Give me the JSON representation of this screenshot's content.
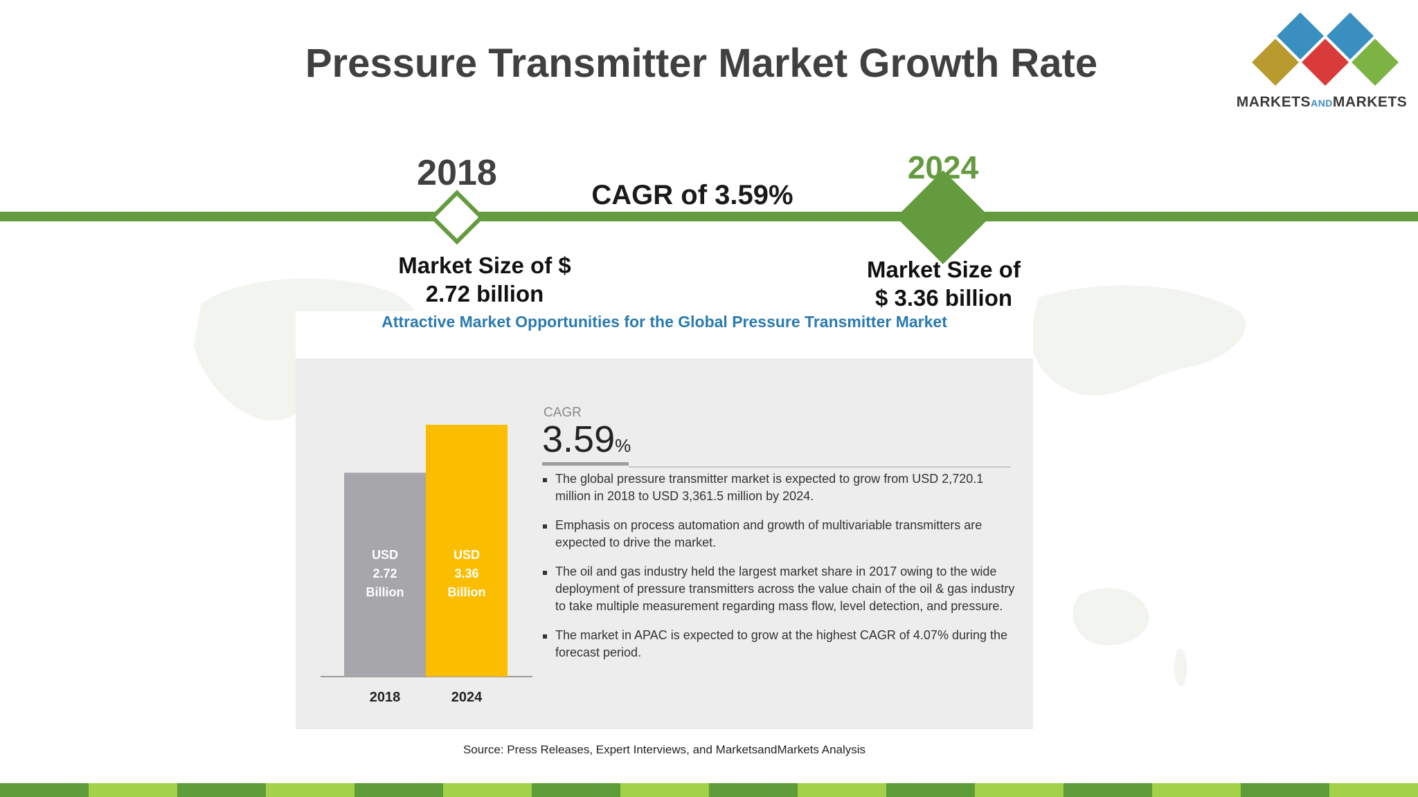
{
  "title": "Pressure Transmitter Market Growth Rate",
  "logo": {
    "text_main_1": "MARKETS",
    "text_and": "AND",
    "text_main_2": "MARKETS",
    "colors": [
      "#3a8fc1",
      "#3a8fc1",
      "#b89a2e",
      "#d93a3a",
      "#7cb342"
    ]
  },
  "timeline": {
    "start_year": "2018",
    "end_year": "2024",
    "cagr_label": "CAGR of 3.59%",
    "start_size": "Market Size of $ 2.72 billion",
    "start_size_line1": "Market Size of $",
    "start_size_line2": "2.72 billion",
    "end_size_line1": "Market Size of",
    "end_size_line2": "$ 3.36 billion",
    "accent_color": "#649b3e"
  },
  "panel": {
    "title": "Attractive Market Opportunities for the Global Pressure Transmitter Market",
    "cagr_label": "CAGR",
    "cagr_value": "3.59",
    "cagr_unit": "%",
    "bullets": [
      "The global pressure transmitter market is expected to grow from USD 2,720.1 million in 2018 to USD 3,361.5 million by 2024.",
      "Emphasis on process automation and growth of multivariable transmitters are expected to drive the market.",
      "The oil and gas industry held the largest market share in 2017 owing to the wide deployment of pressure transmitters across the value chain of the oil & gas industry to take multiple measurement regarding mass flow, level detection, and pressure.",
      "The market in APAC is expected to grow at the highest CAGR of 4.07% during the forecast period."
    ]
  },
  "chart_data": {
    "type": "bar",
    "categories": [
      "2018",
      "2024"
    ],
    "values": [
      2.72,
      3.36
    ],
    "bar_labels": [
      [
        "USD",
        "2.72",
        "Billion"
      ],
      [
        "USD",
        "3.36",
        "Billion"
      ]
    ],
    "colors": [
      "#a7a6ab",
      "#fbbd00"
    ],
    "title": "",
    "xlabel": "",
    "ylabel": "",
    "ylim": [
      0,
      3.6
    ]
  },
  "source": "Source: Press Releases, Expert Interviews, and MarketsandMarkets Analysis",
  "stripe_colors": [
    "#5e9c3a",
    "#a3d14a"
  ]
}
